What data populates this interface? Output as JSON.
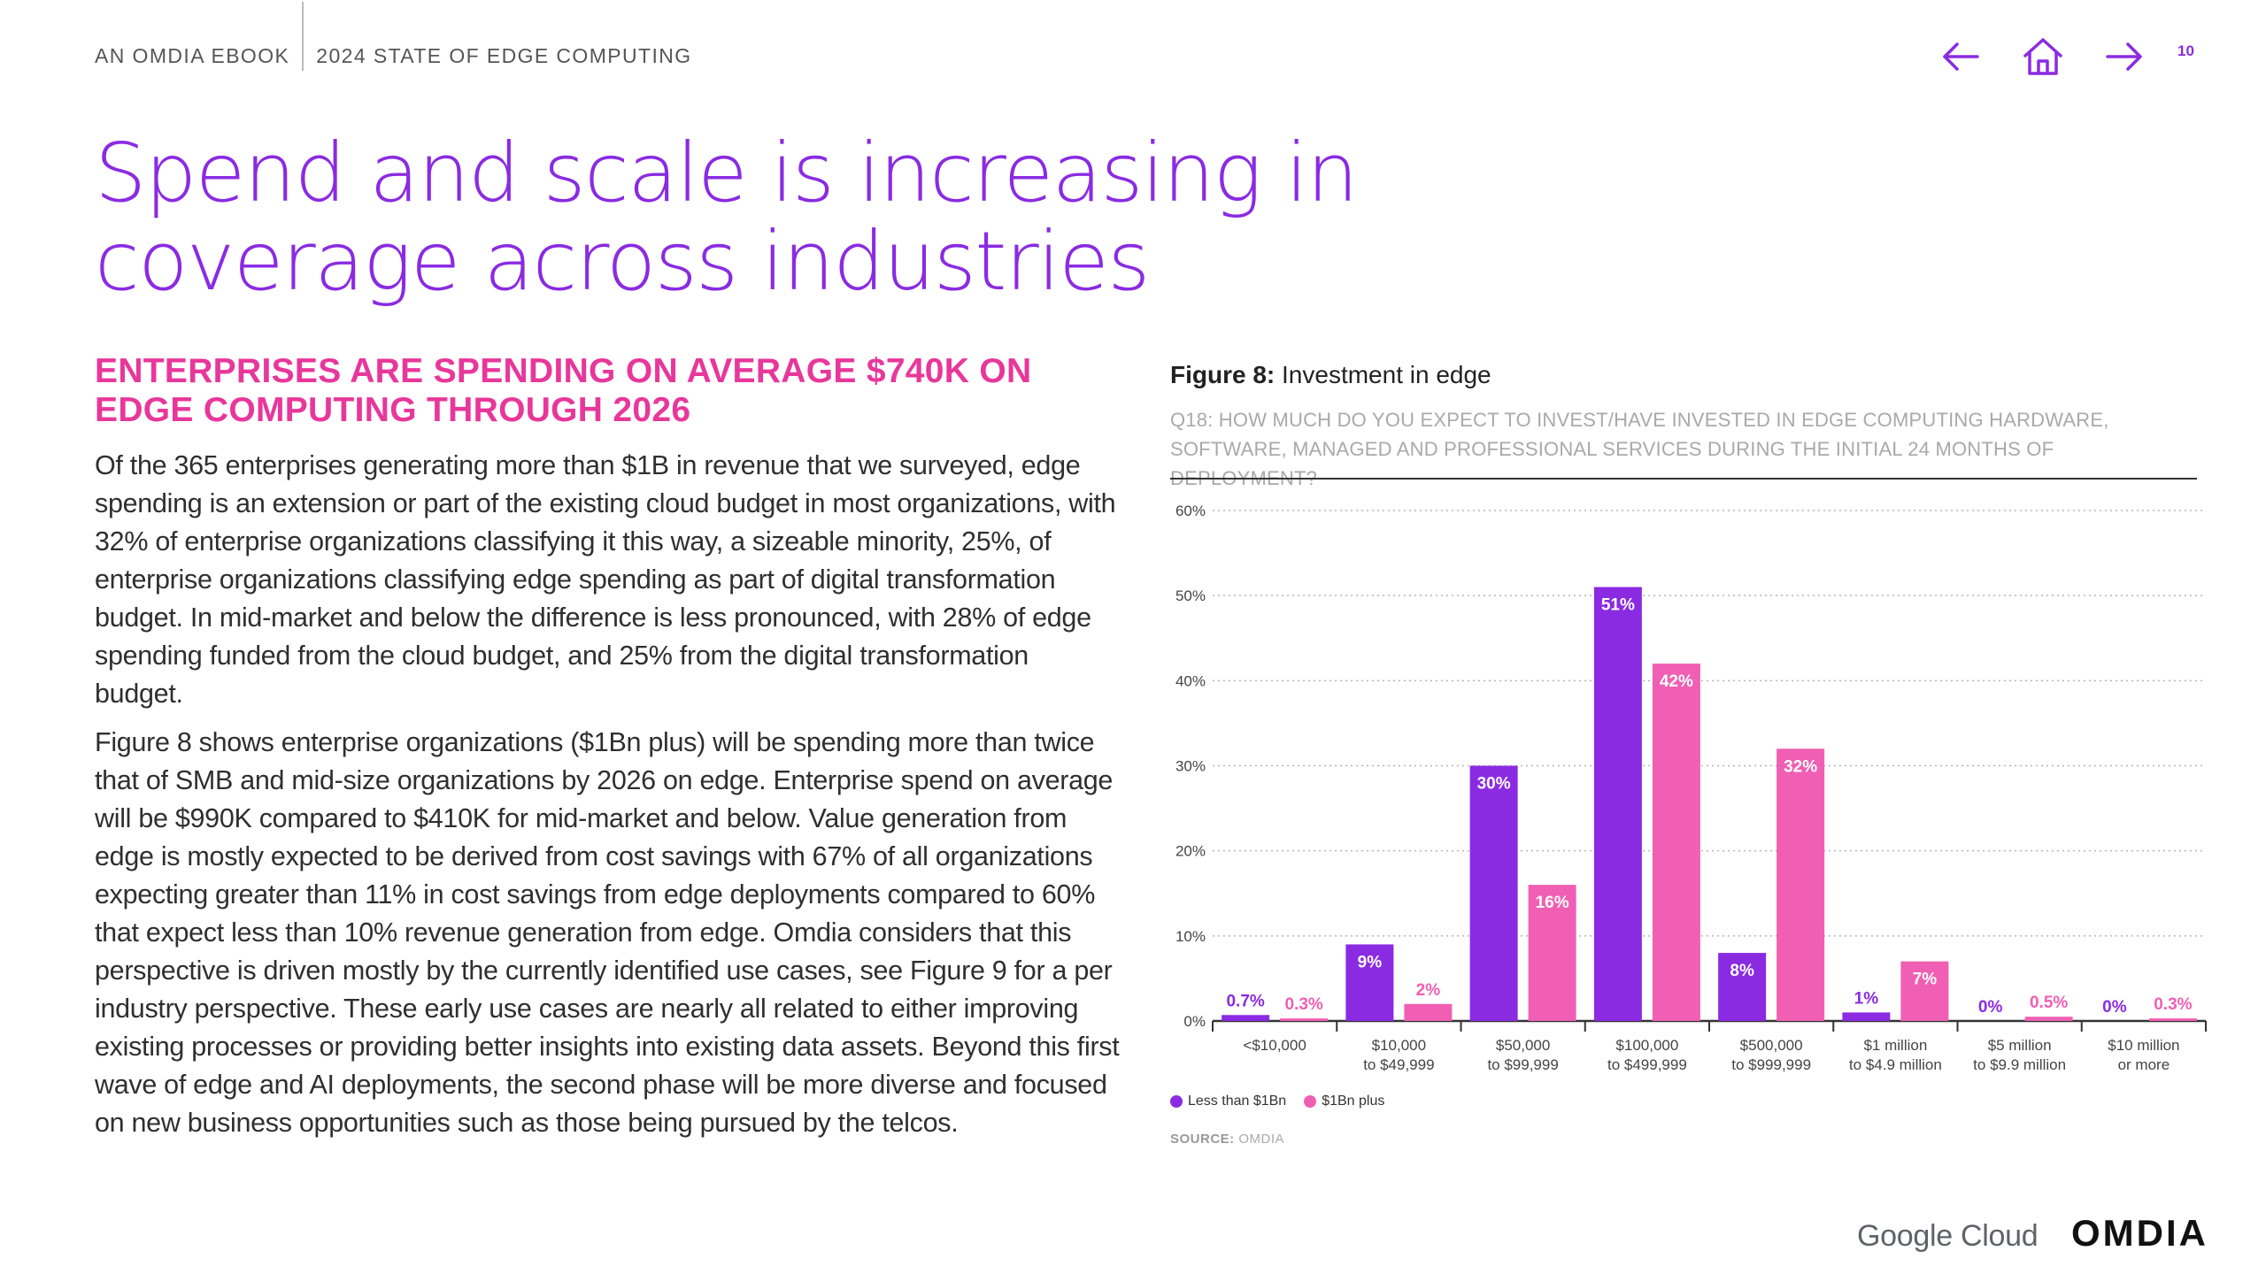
{
  "header": {
    "ebook_label": "AN OMDIA EBOOK",
    "report_title": "2024 STATE OF EDGE COMPUTING",
    "page_number": "10",
    "nav_icons": [
      "arrow-left-icon",
      "home-icon",
      "arrow-right-icon"
    ]
  },
  "title": "Spend and scale is increasing in coverage across industries",
  "subheading": "ENTERPRISES ARE SPENDING ON AVERAGE $740K ON EDGE COMPUTING THROUGH 2026",
  "paragraphs": [
    "Of the 365 enterprises generating more than $1B in revenue that we surveyed, edge spending is an extension or part of the existing cloud budget in most organizations, with 32% of enterprise organizations classifying it this way, a sizeable minority, 25%, of enterprise organizations classifying edge spending as part of digital transformation budget. In mid-market and below the difference is less pronounced, with 28% of edge spending funded from the cloud budget, and 25% from the digital transformation budget.",
    "Figure 8 shows enterprise organizations ($1Bn plus) will be spending more than twice that of SMB and mid-size organizations by 2026 on edge. Enterprise spend on average will be $990K compared to $410K for mid-market and below. Value generation from edge is mostly expected to be derived from cost savings with 67% of all organizations expecting greater than 11% in cost savings from edge deployments compared to 60% that expect less than 10% revenue generation from edge. Omdia considers that this perspective is driven mostly by the currently identified use cases, see Figure 9 for a per industry perspective. These early use cases are nearly all related to either improving existing processes or providing better insights into existing data assets. Beyond this first wave of edge and AI deployments, the second phase will be more diverse and focused on new business opportunities such as those being pursued by the telcos."
  ],
  "figure": {
    "label": "Figure 8:",
    "name": "Investment in edge",
    "question": "Q18: HOW MUCH DO YOU EXPECT TO INVEST/HAVE INVESTED IN EDGE COMPUTING HARDWARE, SOFTWARE, MANAGED AND PROFESSIONAL SERVICES DURING THE INITIAL 24 MONTHS OF DEPLOYMENT?",
    "source_label": "SOURCE:",
    "source_value": "OMDIA"
  },
  "chart_data": {
    "type": "bar",
    "title": "Investment in edge",
    "categories": [
      [
        "<$10,000",
        ""
      ],
      [
        "$10,000",
        "to $49,999"
      ],
      [
        "$50,000",
        "to $99,999"
      ],
      [
        "$100,000",
        "to $499,999"
      ],
      [
        "$500,000",
        "to $999,999"
      ],
      [
        "$1 million",
        "to $4.9 million"
      ],
      [
        "$5 million",
        "to $9.9 million"
      ],
      [
        "$10 million",
        "or more"
      ]
    ],
    "series": [
      {
        "name": "Less than $1Bn",
        "color": "#8a2be2",
        "values": [
          0.7,
          9,
          30,
          51,
          8,
          1,
          0,
          0
        ],
        "labels": [
          "0.7%",
          "9%",
          "30%",
          "51%",
          "8%",
          "1%",
          "0%",
          "0%"
        ]
      },
      {
        "name": "$1Bn plus",
        "color": "#f05fb4",
        "values": [
          0.3,
          2,
          16,
          42,
          32,
          7,
          0.5,
          0.3
        ],
        "labels": [
          "0.3%",
          "2%",
          "16%",
          "42%",
          "32%",
          "7%",
          "0.5%",
          "0.3%"
        ]
      }
    ],
    "yticks": [
      "0%",
      "10%",
      "20%",
      "30%",
      "40%",
      "50%",
      "60%"
    ],
    "ylim": [
      0,
      60
    ],
    "grid": true,
    "legend_position": "bottom-left"
  },
  "footer": {
    "google_cloud": "Google Cloud",
    "omdia_logo": "OMDIA"
  }
}
